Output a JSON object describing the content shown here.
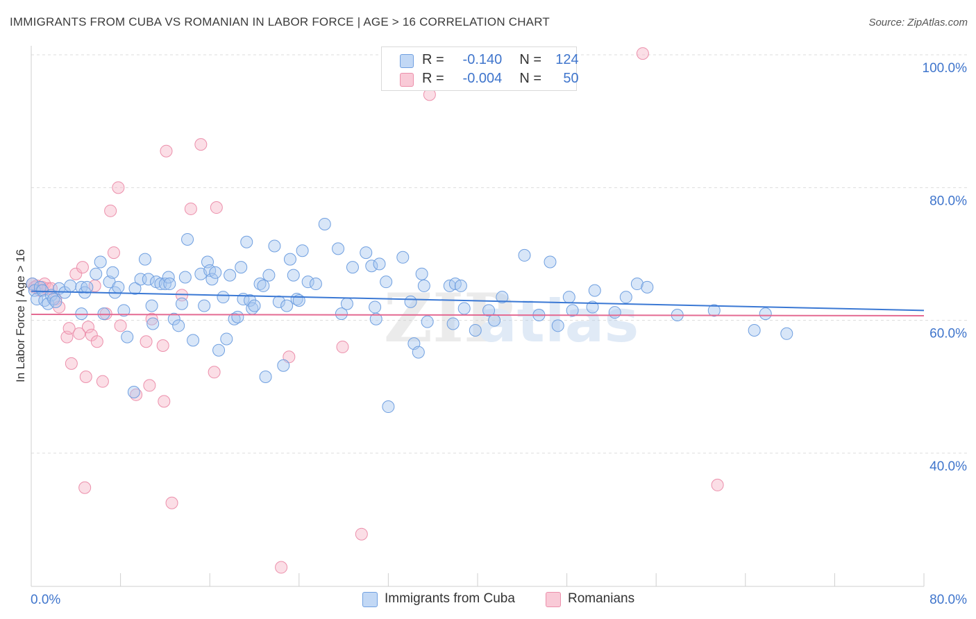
{
  "header": {
    "title": "IMMIGRANTS FROM CUBA VS ROMANIAN IN LABOR FORCE | AGE > 16 CORRELATION CHART",
    "source": "Source: ZipAtlas.com"
  },
  "legend": {
    "r_label": "R =",
    "n_label": "N =",
    "rows": [
      {
        "r": "-0.140",
        "n": "124"
      },
      {
        "r": "-0.004",
        "n": "50"
      }
    ]
  },
  "watermark": {
    "zip": "ZIP",
    "atlas": "atlas"
  },
  "colors": {
    "blue_fill": "#a9c8f0",
    "blue_stroke": "#6f9fe0",
    "blue_line": "#3a78d4",
    "pink_fill": "#f6b6c8",
    "pink_stroke": "#ec8fab",
    "pink_line": "#e46a92",
    "tick_text": "#3f75cc",
    "grid": "#dcdcdc"
  },
  "chart_data": {
    "type": "scatter",
    "xlabel": "",
    "ylabel": "In Labor Force | Age > 16",
    "xlim": [
      0,
      80
    ],
    "ylim": [
      20,
      100
    ],
    "x_tick_labels": [
      {
        "value": 0,
        "label": "0.0%"
      },
      {
        "value": 80,
        "label": "80.0%"
      }
    ],
    "y_tick_labels": [
      {
        "value": 100,
        "label": "100.0%"
      },
      {
        "value": 80,
        "label": "80.0%"
      },
      {
        "value": 60,
        "label": "60.0%"
      },
      {
        "value": 40,
        "label": "40.0%"
      }
    ],
    "grid": true,
    "legend_position": "bottom",
    "series": [
      {
        "name": "Immigrants from Cuba",
        "color": "#a9c8f0",
        "trend": {
          "x": [
            0,
            80
          ],
          "y": [
            64.4,
            61.5
          ]
        },
        "points": [
          [
            0.1,
            65.5
          ],
          [
            0.3,
            64.5
          ],
          [
            0.5,
            63.2
          ],
          [
            0.8,
            65.0
          ],
          [
            1.0,
            64.5
          ],
          [
            1.2,
            63.0
          ],
          [
            1.5,
            62.5
          ],
          [
            1.8,
            63.8
          ],
          [
            2.0,
            63.2
          ],
          [
            2.2,
            62.8
          ],
          [
            2.5,
            64.8
          ],
          [
            3.0,
            64.2
          ],
          [
            3.5,
            65.2
          ],
          [
            4.5,
            65.0
          ],
          [
            4.8,
            64.2
          ],
          [
            5.0,
            65.0
          ],
          [
            4.5,
            61.0
          ],
          [
            5.8,
            67.0
          ],
          [
            6.2,
            68.8
          ],
          [
            6.5,
            61.0
          ],
          [
            7.0,
            65.8
          ],
          [
            7.3,
            67.2
          ],
          [
            7.5,
            64.2
          ],
          [
            7.8,
            65.0
          ],
          [
            8.3,
            61.5
          ],
          [
            8.6,
            57.5
          ],
          [
            9.3,
            64.8
          ],
          [
            9.2,
            49.2
          ],
          [
            9.8,
            66.2
          ],
          [
            10.2,
            69.2
          ],
          [
            10.5,
            66.2
          ],
          [
            10.8,
            62.2
          ],
          [
            10.9,
            59.5
          ],
          [
            11.2,
            65.8
          ],
          [
            11.6,
            65.5
          ],
          [
            12.0,
            65.5
          ],
          [
            12.3,
            66.5
          ],
          [
            12.4,
            65.5
          ],
          [
            12.8,
            60.2
          ],
          [
            13.2,
            59.2
          ],
          [
            13.5,
            62.5
          ],
          [
            13.8,
            66.5
          ],
          [
            14.0,
            72.2
          ],
          [
            14.5,
            57.0
          ],
          [
            15.2,
            67.0
          ],
          [
            15.5,
            62.2
          ],
          [
            15.8,
            68.8
          ],
          [
            16.0,
            67.5
          ],
          [
            16.2,
            66.2
          ],
          [
            16.5,
            67.2
          ],
          [
            16.8,
            55.5
          ],
          [
            17.2,
            63.5
          ],
          [
            17.5,
            57.2
          ],
          [
            17.8,
            66.8
          ],
          [
            18.2,
            60.2
          ],
          [
            18.5,
            60.5
          ],
          [
            18.8,
            68.0
          ],
          [
            19.0,
            63.2
          ],
          [
            19.3,
            71.8
          ],
          [
            19.6,
            63.0
          ],
          [
            19.8,
            61.8
          ],
          [
            20.0,
            62.2
          ],
          [
            20.5,
            65.5
          ],
          [
            20.8,
            65.2
          ],
          [
            21.0,
            51.5
          ],
          [
            21.3,
            66.8
          ],
          [
            21.8,
            71.2
          ],
          [
            22.2,
            62.8
          ],
          [
            22.6,
            53.2
          ],
          [
            22.9,
            62.2
          ],
          [
            23.2,
            69.2
          ],
          [
            23.5,
            66.8
          ],
          [
            23.8,
            63.2
          ],
          [
            24.0,
            63.0
          ],
          [
            24.3,
            70.5
          ],
          [
            24.8,
            65.8
          ],
          [
            25.5,
            65.5
          ],
          [
            26.3,
            74.5
          ],
          [
            27.5,
            70.8
          ],
          [
            27.8,
            61.0
          ],
          [
            28.3,
            62.5
          ],
          [
            28.8,
            68.0
          ],
          [
            30.0,
            70.2
          ],
          [
            30.5,
            68.2
          ],
          [
            30.8,
            62.0
          ],
          [
            30.9,
            60.2
          ],
          [
            31.2,
            68.5
          ],
          [
            31.8,
            65.8
          ],
          [
            32.0,
            47.0
          ],
          [
            33.3,
            69.5
          ],
          [
            34.0,
            62.8
          ],
          [
            34.3,
            56.5
          ],
          [
            34.7,
            55.2
          ],
          [
            35.0,
            67.0
          ],
          [
            35.2,
            65.2
          ],
          [
            35.5,
            59.8
          ],
          [
            37.5,
            65.2
          ],
          [
            37.8,
            59.5
          ],
          [
            38.0,
            65.5
          ],
          [
            38.5,
            65.2
          ],
          [
            38.8,
            61.8
          ],
          [
            39.8,
            58.5
          ],
          [
            41.0,
            61.5
          ],
          [
            41.5,
            60.0
          ],
          [
            42.2,
            63.5
          ],
          [
            44.2,
            69.8
          ],
          [
            45.5,
            60.8
          ],
          [
            46.5,
            68.8
          ],
          [
            47.2,
            59.2
          ],
          [
            48.2,
            63.5
          ],
          [
            48.5,
            61.5
          ],
          [
            50.3,
            62.0
          ],
          [
            50.5,
            64.5
          ],
          [
            52.3,
            61.2
          ],
          [
            53.3,
            63.5
          ],
          [
            54.3,
            65.5
          ],
          [
            55.2,
            65.0
          ],
          [
            57.9,
            60.8
          ],
          [
            61.2,
            61.5
          ],
          [
            64.8,
            58.5
          ],
          [
            65.8,
            61.0
          ],
          [
            67.7,
            58.0
          ]
        ]
      },
      {
        "name": "Romanians",
        "color": "#f6b6c8",
        "trend": {
          "x": [
            0,
            80
          ],
          "y": [
            60.9,
            60.7
          ]
        },
        "points": [
          [
            0.1,
            65.5
          ],
          [
            0.3,
            65.0
          ],
          [
            0.5,
            65.2
          ],
          [
            0.8,
            64.5
          ],
          [
            1.0,
            65.0
          ],
          [
            1.2,
            65.5
          ],
          [
            1.5,
            64.8
          ],
          [
            1.8,
            64.8
          ],
          [
            2.2,
            63.2
          ],
          [
            2.5,
            62.0
          ],
          [
            3.2,
            57.5
          ],
          [
            3.4,
            58.8
          ],
          [
            3.6,
            53.5
          ],
          [
            4.0,
            67.0
          ],
          [
            4.3,
            58.0
          ],
          [
            4.6,
            68.0
          ],
          [
            4.9,
            51.5
          ],
          [
            5.1,
            59.0
          ],
          [
            5.4,
            57.8
          ],
          [
            5.7,
            65.2
          ],
          [
            5.9,
            56.8
          ],
          [
            6.4,
            50.8
          ],
          [
            6.7,
            61.0
          ],
          [
            7.1,
            76.5
          ],
          [
            7.4,
            70.2
          ],
          [
            7.8,
            80.0
          ],
          [
            8.0,
            59.2
          ],
          [
            9.4,
            48.8
          ],
          [
            10.3,
            56.8
          ],
          [
            10.6,
            50.2
          ],
          [
            10.8,
            60.2
          ],
          [
            11.8,
            56.2
          ],
          [
            11.9,
            47.8
          ],
          [
            12.1,
            85.5
          ],
          [
            12.6,
            32.5
          ],
          [
            13.5,
            63.8
          ],
          [
            14.3,
            76.8
          ],
          [
            15.2,
            86.5
          ],
          [
            16.4,
            52.2
          ],
          [
            16.6,
            77.0
          ],
          [
            4.8,
            34.8
          ],
          [
            22.4,
            22.8
          ],
          [
            23.1,
            54.5
          ],
          [
            27.9,
            56.0
          ],
          [
            29.6,
            27.8
          ],
          [
            35.7,
            94.0
          ],
          [
            54.8,
            100.2
          ],
          [
            61.5,
            35.2
          ]
        ]
      }
    ]
  }
}
